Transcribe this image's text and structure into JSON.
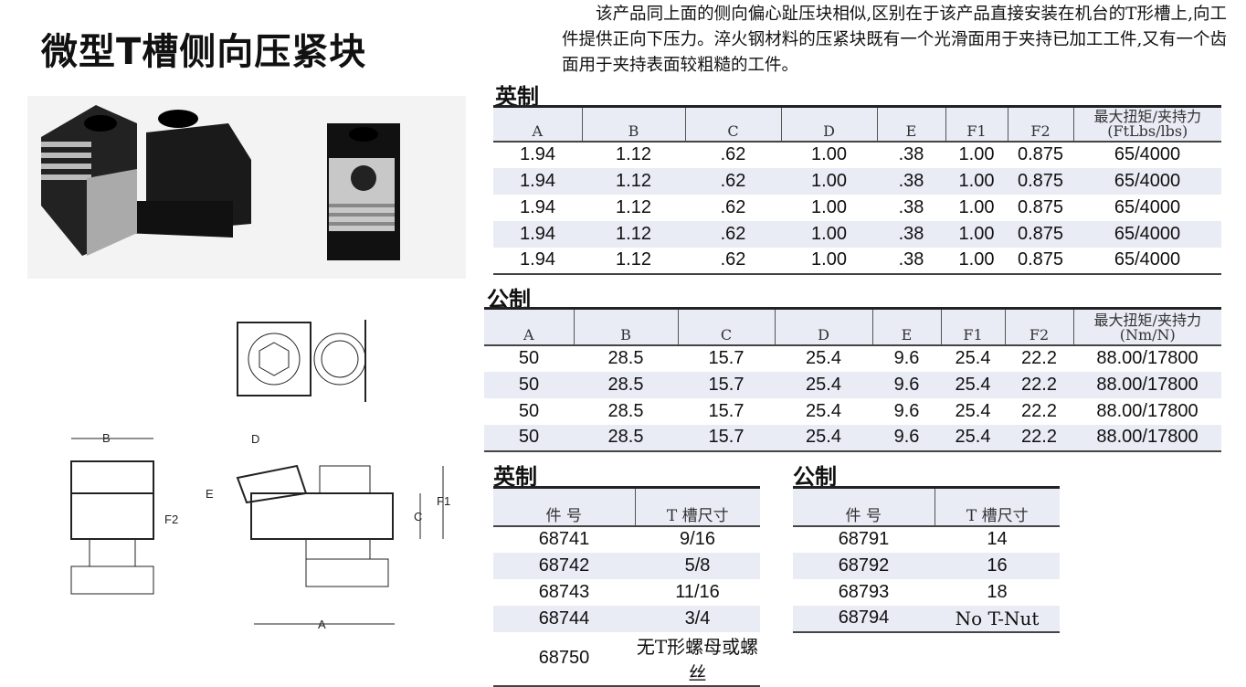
{
  "title": "微型T槽侧向压紧块",
  "intro": "该产品同上面的侧向偏心趾压块相似,区别在于该产品直接安装在机台的T形槽上,向工件提供正向下压力。淬火钢材料的压紧块既有一个光滑面用于夹持已加工工件,又有一个齿面用于夹持表面较粗糙的工件。",
  "imperial": {
    "label": "英制",
    "headers": [
      "A",
      "B",
      "C",
      "D",
      "E",
      "F1",
      "F2",
      "最大扭矩/夹持力\n(FtLbs/lbs)"
    ],
    "rows": [
      [
        "1.94",
        "1.12",
        ".62",
        "1.00",
        ".38",
        "1.00",
        "0.875",
        "65/4000"
      ],
      [
        "1.94",
        "1.12",
        ".62",
        "1.00",
        ".38",
        "1.00",
        "0.875",
        "65/4000"
      ],
      [
        "1.94",
        "1.12",
        ".62",
        "1.00",
        ".38",
        "1.00",
        "0.875",
        "65/4000"
      ],
      [
        "1.94",
        "1.12",
        ".62",
        "1.00",
        ".38",
        "1.00",
        "0.875",
        "65/4000"
      ],
      [
        "1.94",
        "1.12",
        ".62",
        "1.00",
        ".38",
        "1.00",
        "0.875",
        "65/4000"
      ]
    ]
  },
  "metric": {
    "label": "公制",
    "headers": [
      "A",
      "B",
      "C",
      "D",
      "E",
      "F1",
      "F2",
      "最大扭矩/夹持力\n(Nm/N)"
    ],
    "rows": [
      [
        "50",
        "28.5",
        "15.7",
        "25.4",
        "9.6",
        "25.4",
        "22.2",
        "88.00/17800"
      ],
      [
        "50",
        "28.5",
        "15.7",
        "25.4",
        "9.6",
        "25.4",
        "22.2",
        "88.00/17800"
      ],
      [
        "50",
        "28.5",
        "15.7",
        "25.4",
        "9.6",
        "25.4",
        "22.2",
        "88.00/17800"
      ],
      [
        "50",
        "28.5",
        "15.7",
        "25.4",
        "9.6",
        "25.4",
        "22.2",
        "88.00/17800"
      ]
    ]
  },
  "imperial_parts": {
    "label": "英制",
    "headers": [
      "件 号",
      "T 槽尺寸"
    ],
    "rows": [
      [
        "68741",
        "9/16"
      ],
      [
        "68742",
        "5/8"
      ],
      [
        "68743",
        "11/16"
      ],
      [
        "68744",
        "3/4"
      ],
      [
        "68750",
        "无T形螺母或螺丝"
      ]
    ]
  },
  "metric_parts": {
    "label": "公制",
    "headers": [
      "件 号",
      "T 槽尺寸"
    ],
    "rows": [
      [
        "68791",
        "14"
      ],
      [
        "68792",
        "16"
      ],
      [
        "68793",
        "18"
      ],
      [
        "68794",
        "No T-Nut"
      ]
    ]
  },
  "drawing_labels": {
    "a": "A",
    "b": "B",
    "c": "C",
    "d": "D",
    "e": "E",
    "f1": "F1",
    "f2": "F2"
  }
}
